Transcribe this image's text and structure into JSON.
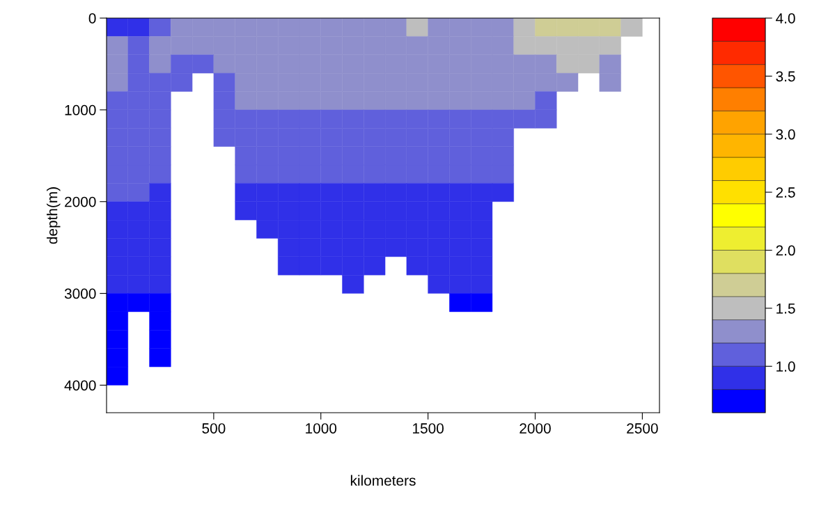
{
  "chart_data": {
    "type": "heatmap",
    "xlabel": "kilometers",
    "ylabel": "depth(m)",
    "x": [
      50,
      150,
      250,
      350,
      450,
      550,
      650,
      750,
      850,
      950,
      1050,
      1150,
      1250,
      1350,
      1450,
      1550,
      1650,
      1750,
      1850,
      1950,
      2050,
      2150,
      2250,
      2350,
      2450,
      2550
    ],
    "y": [
      100,
      300,
      500,
      700,
      900,
      1100,
      1300,
      1500,
      1700,
      1900,
      2100,
      2300,
      2500,
      2700,
      2900,
      3100,
      3300,
      3500,
      3700,
      3900
    ],
    "cells": [
      [
        0.9,
        0.9,
        1.1,
        1.3,
        1.3,
        1.3,
        1.3,
        1.3,
        1.3,
        1.3,
        1.3,
        1.3,
        1.3,
        1.3,
        1.5,
        1.3,
        1.3,
        1.3,
        1.3,
        1.5,
        1.7,
        1.7,
        1.7,
        1.7,
        1.5,
        null
      ],
      [
        1.3,
        1.1,
        1.3,
        1.3,
        1.3,
        1.3,
        1.3,
        1.3,
        1.3,
        1.3,
        1.3,
        1.3,
        1.3,
        1.3,
        1.3,
        1.3,
        1.3,
        1.3,
        1.3,
        1.5,
        1.5,
        1.5,
        1.5,
        1.5,
        null,
        null
      ],
      [
        1.3,
        1.1,
        1.3,
        1.1,
        1.1,
        1.3,
        1.3,
        1.3,
        1.3,
        1.3,
        1.3,
        1.3,
        1.3,
        1.3,
        1.3,
        1.3,
        1.3,
        1.3,
        1.3,
        1.3,
        1.3,
        1.5,
        1.5,
        1.3,
        null,
        null
      ],
      [
        1.3,
        1.1,
        1.1,
        1.1,
        null,
        1.1,
        1.3,
        1.3,
        1.3,
        1.3,
        1.3,
        1.3,
        1.3,
        1.3,
        1.3,
        1.3,
        1.3,
        1.3,
        1.3,
        1.3,
        1.3,
        1.3,
        null,
        1.3,
        null,
        null
      ],
      [
        1.1,
        1.1,
        1.1,
        null,
        null,
        1.1,
        1.3,
        1.3,
        1.3,
        1.3,
        1.3,
        1.3,
        1.3,
        1.3,
        1.3,
        1.3,
        1.3,
        1.3,
        1.3,
        1.3,
        1.1,
        null,
        null,
        null,
        null,
        null
      ],
      [
        1.1,
        1.1,
        1.1,
        null,
        null,
        1.1,
        1.1,
        1.1,
        1.1,
        1.1,
        1.1,
        1.1,
        1.1,
        1.1,
        1.1,
        1.1,
        1.1,
        1.1,
        1.1,
        1.1,
        1.1,
        null,
        null,
        null,
        null,
        null
      ],
      [
        1.1,
        1.1,
        1.1,
        null,
        null,
        1.1,
        1.1,
        1.1,
        1.1,
        1.1,
        1.1,
        1.1,
        1.1,
        1.1,
        1.1,
        1.1,
        1.1,
        1.1,
        1.1,
        null,
        null,
        null,
        null,
        null,
        null,
        null
      ],
      [
        1.1,
        1.1,
        1.1,
        null,
        null,
        null,
        1.1,
        1.1,
        1.1,
        1.1,
        1.1,
        1.1,
        1.1,
        1.1,
        1.1,
        1.1,
        1.1,
        1.1,
        1.1,
        null,
        null,
        null,
        null,
        null,
        null,
        null
      ],
      [
        1.1,
        1.1,
        1.1,
        null,
        null,
        null,
        1.1,
        1.1,
        1.1,
        1.1,
        1.1,
        1.1,
        1.1,
        1.1,
        1.1,
        1.1,
        1.1,
        1.1,
        1.1,
        null,
        null,
        null,
        null,
        null,
        null,
        null
      ],
      [
        1.1,
        1.1,
        0.9,
        null,
        null,
        null,
        0.9,
        0.9,
        0.9,
        0.9,
        0.9,
        0.9,
        0.9,
        0.9,
        0.9,
        0.9,
        0.9,
        0.9,
        0.9,
        null,
        null,
        null,
        null,
        null,
        null,
        null
      ],
      [
        0.9,
        0.9,
        0.9,
        null,
        null,
        null,
        0.9,
        0.9,
        0.9,
        0.9,
        0.9,
        0.9,
        0.9,
        0.9,
        0.9,
        0.9,
        0.9,
        0.9,
        null,
        null,
        null,
        null,
        null,
        null,
        null,
        null
      ],
      [
        0.9,
        0.9,
        0.9,
        null,
        null,
        null,
        null,
        0.9,
        0.9,
        0.9,
        0.9,
        0.9,
        0.9,
        0.9,
        0.9,
        0.9,
        0.9,
        0.9,
        null,
        null,
        null,
        null,
        null,
        null,
        null,
        null
      ],
      [
        0.9,
        0.9,
        0.9,
        null,
        null,
        null,
        null,
        null,
        0.9,
        0.9,
        0.9,
        0.9,
        0.9,
        0.9,
        0.9,
        0.9,
        0.9,
        0.9,
        null,
        null,
        null,
        null,
        null,
        null,
        null,
        null
      ],
      [
        0.9,
        0.9,
        0.9,
        null,
        null,
        null,
        null,
        null,
        0.9,
        0.9,
        0.9,
        0.9,
        0.9,
        null,
        0.9,
        0.9,
        0.9,
        0.9,
        null,
        null,
        null,
        null,
        null,
        null,
        null,
        null
      ],
      [
        0.9,
        0.9,
        0.9,
        null,
        null,
        null,
        null,
        null,
        null,
        null,
        null,
        0.9,
        null,
        null,
        null,
        0.9,
        0.9,
        0.9,
        null,
        null,
        null,
        null,
        null,
        null,
        null,
        null
      ],
      [
        0.7,
        0.7,
        0.7,
        null,
        null,
        null,
        null,
        null,
        null,
        null,
        null,
        null,
        null,
        null,
        null,
        null,
        0.7,
        0.7,
        null,
        null,
        null,
        null,
        null,
        null,
        null,
        null
      ],
      [
        0.7,
        null,
        0.7,
        null,
        null,
        null,
        null,
        null,
        null,
        null,
        null,
        null,
        null,
        null,
        null,
        null,
        null,
        null,
        null,
        null,
        null,
        null,
        null,
        null,
        null,
        null
      ],
      [
        0.7,
        null,
        0.7,
        null,
        null,
        null,
        null,
        null,
        null,
        null,
        null,
        null,
        null,
        null,
        null,
        null,
        null,
        null,
        null,
        null,
        null,
        null,
        null,
        null,
        null,
        null
      ],
      [
        0.7,
        null,
        0.7,
        null,
        null,
        null,
        null,
        null,
        null,
        null,
        null,
        null,
        null,
        null,
        null,
        null,
        null,
        null,
        null,
        null,
        null,
        null,
        null,
        null,
        null,
        null
      ],
      [
        0.7,
        null,
        null,
        null,
        null,
        null,
        null,
        null,
        null,
        null,
        null,
        null,
        null,
        null,
        null,
        null,
        null,
        null,
        null,
        null,
        null,
        null,
        null,
        null,
        null,
        null
      ]
    ],
    "colors": [
      "#0000ff",
      "#3030e8",
      "#6060dc",
      "#8f8fcc",
      "#bebebe",
      "#cfcd95",
      "#dfdf60",
      "#eeee30",
      "#ffff00",
      "#ffe000",
      "#ffcc00",
      "#ffb500",
      "#ffa300",
      "#ff7f00",
      "#ff5500",
      "#ff2a00",
      "#ff0000"
    ],
    "clim": [
      0.6,
      4.0
    ],
    "cticks": [
      {
        "value": 1,
        "label": "1.0"
      },
      1.5,
      {
        "value": 2,
        "label": "2.0"
      },
      2.5,
      {
        "value": 3,
        "label": "3.0"
      },
      3.5,
      {
        "value": 4,
        "label": "4.0"
      }
    ],
    "xlim": [
      0,
      2580
    ],
    "xticks": [
      500,
      1000,
      1500,
      2000,
      2500
    ],
    "ylim": [
      4300,
      0
    ],
    "yticks": [
      0,
      1000,
      2000,
      3000,
      4000
    ]
  }
}
